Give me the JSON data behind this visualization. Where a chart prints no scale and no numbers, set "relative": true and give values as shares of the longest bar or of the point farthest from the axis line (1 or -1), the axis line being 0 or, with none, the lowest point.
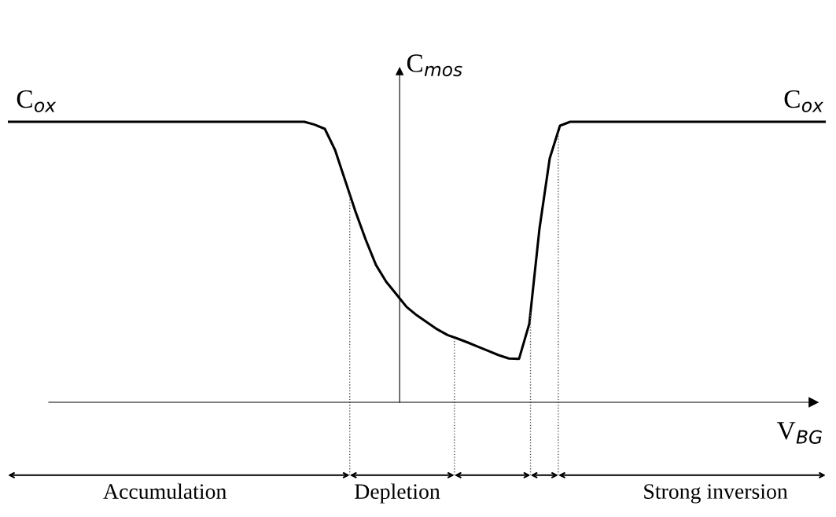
{
  "chart_data": {
    "type": "line",
    "relative": true,
    "xlabel": "V$_{BG}$",
    "ylabel": "C$_{mos}$",
    "categories": [
      null,
      null,
      null,
      null,
      null,
      null,
      null,
      null,
      null,
      null,
      null,
      null,
      null,
      null,
      null,
      null,
      null,
      null,
      null,
      null,
      null,
      null,
      null,
      null,
      null,
      null,
      null,
      null,
      null,
      null,
      null,
      null,
      null,
      null,
      null,
      null,
      null,
      null,
      null,
      null,
      null,
      null,
      null,
      null,
      null,
      null,
      null,
      null,
      null,
      null,
      null,
      null,
      null,
      null,
      null,
      null,
      null,
      null,
      null,
      null,
      null,
      null,
      null,
      null,
      null,
      null,
      null,
      null,
      null,
      null,
      null,
      null,
      null,
      null,
      null,
      null,
      null,
      null,
      null,
      null,
      null
    ],
    "series": [
      {
        "color": "#000000",
        "values": [
          1,
          1,
          1,
          1,
          1,
          1,
          1,
          1,
          1,
          1,
          1,
          1,
          1,
          1,
          1,
          1,
          1,
          1,
          1,
          1,
          1,
          1,
          1,
          1,
          1,
          1,
          1,
          1,
          1,
          1,
          0.99,
          0.975,
          0.9,
          0.79,
          0.68,
          0.58,
          0.49,
          0.43,
          0.385,
          0.34,
          0.31,
          0.285,
          0.26,
          0.24,
          0.227,
          0.213,
          0.198,
          0.183,
          0.168,
          0.156,
          0.155,
          0.28,
          0.62,
          0.87,
          0.986,
          1,
          1,
          1,
          1,
          1,
          1,
          1,
          1,
          1,
          1,
          1,
          1,
          1,
          1,
          1,
          1,
          1,
          1,
          1,
          1,
          1,
          1,
          1,
          1,
          1,
          1
        ]
      }
    ],
    "annotations": [
      "C$_{ox}$",
      "C$_{ox}$",
      "Accumulation",
      "Depletion",
      "Strong inversion"
    ]
  }
}
